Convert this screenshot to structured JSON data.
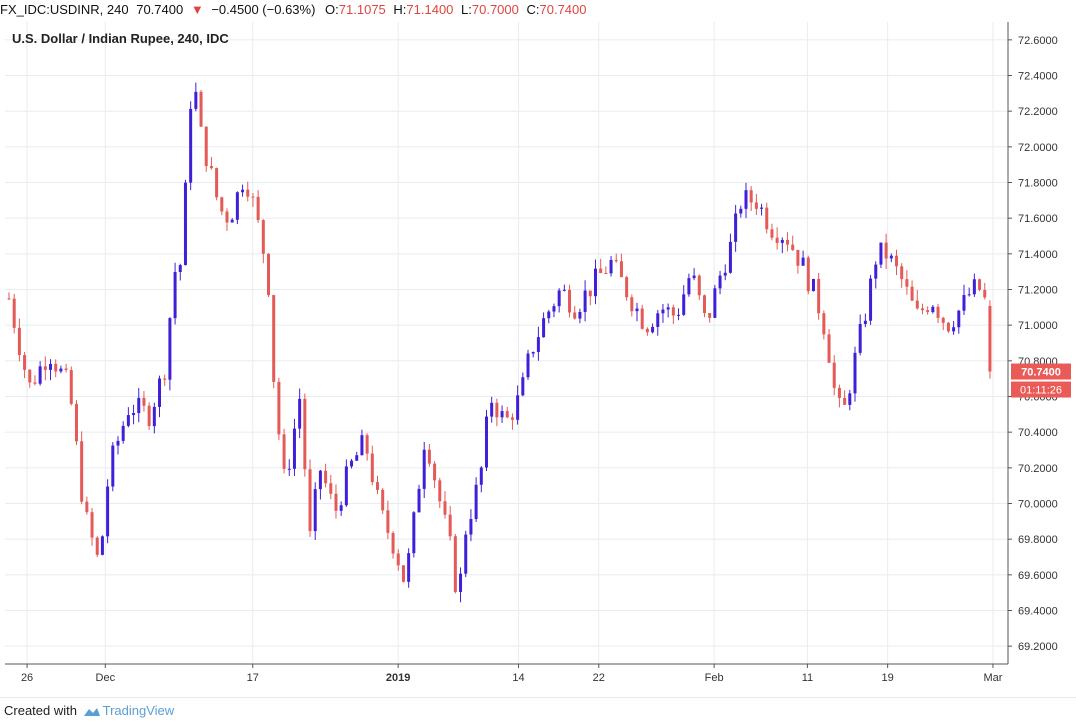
{
  "header": {
    "symbol": "FX_IDC:USDINR, 240",
    "last": "70.7400",
    "arrow": "▼",
    "change": "−0.4500 (−0.63%)",
    "o_label": "O:",
    "o_val": "71.1075",
    "h_label": "H:",
    "h_val": "71.1400",
    "l_label": "L:",
    "l_val": "70.7000",
    "c_label": "C:",
    "c_val": "70.7400"
  },
  "footer": {
    "created_with": "Created with",
    "brand": "TradingView"
  },
  "colors": {
    "up": "#3f1fd9",
    "down": "#e45a56",
    "grid": "#e8ecf1",
    "axis": "#555555",
    "price_tag": "#ea5a56"
  },
  "chart_data": {
    "type": "candlestick",
    "title": "U.S. Dollar / Indian Rupee, 240, IDC",
    "ylim": [
      69.1,
      72.7
    ],
    "yticks": [
      "72.6000",
      "72.4000",
      "72.2000",
      "72.0000",
      "71.8000",
      "71.6000",
      "71.4000",
      "71.2000",
      "71.0000",
      "70.8000",
      "70.6000",
      "70.4000",
      "70.2000",
      "70.0000",
      "69.8000",
      "69.6000",
      "69.4000",
      "69.2000"
    ],
    "xticks": [
      {
        "label": "26",
        "pos": 0.022,
        "bold": false
      },
      {
        "label": "Dec",
        "pos": 0.1,
        "bold": false
      },
      {
        "label": "17",
        "pos": 0.247,
        "bold": false
      },
      {
        "label": "2019",
        "pos": 0.392,
        "bold": true
      },
      {
        "label": "14",
        "pos": 0.512,
        "bold": false
      },
      {
        "label": "22",
        "pos": 0.592,
        "bold": false
      },
      {
        "label": "Feb",
        "pos": 0.707,
        "bold": false
      },
      {
        "label": "11",
        "pos": 0.8,
        "bold": false
      },
      {
        "label": "19",
        "pos": 0.88,
        "bold": false
      },
      {
        "label": "Mar",
        "pos": 0.985,
        "bold": false
      }
    ],
    "last_price_label": "70.7400",
    "countdown_label": "01:11:26",
    "grid": true,
    "candles": []
  }
}
